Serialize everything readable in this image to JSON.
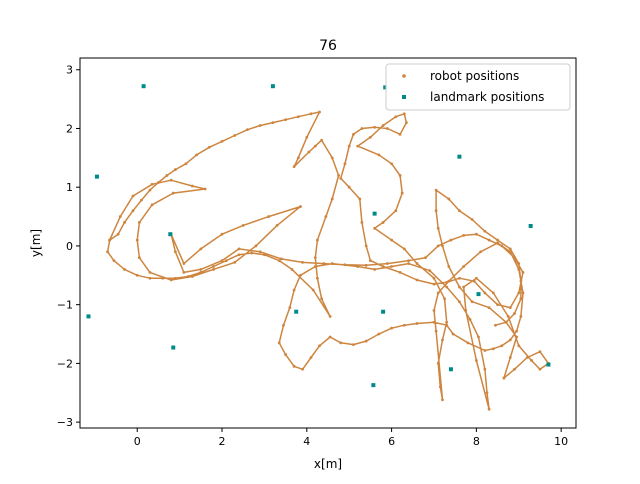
{
  "chart_data": {
    "type": "scatter",
    "title": "76",
    "xlabel": "x[m]",
    "ylabel": "y[m]",
    "xlim": [
      -1.35,
      10.35
    ],
    "ylim": [
      -3.1,
      3.2
    ],
    "xticks": [
      0,
      2,
      4,
      6,
      8,
      10
    ],
    "yticks": [
      -3,
      -2,
      -1,
      0,
      1,
      2,
      3
    ],
    "grid": false,
    "legend_position": "top-right",
    "series": [
      {
        "name": "robot positions",
        "color": "#cd853f",
        "marker": "dot",
        "connected": true,
        "points": [
          [
            -0.65,
            0.1
          ],
          [
            -0.45,
            0.2
          ],
          [
            -0.3,
            0.4
          ],
          [
            -0.1,
            0.6
          ],
          [
            0.1,
            0.78
          ],
          [
            0.3,
            0.95
          ],
          [
            0.5,
            1.08
          ],
          [
            0.7,
            1.2
          ],
          [
            0.9,
            1.3
          ],
          [
            1.15,
            1.4
          ],
          [
            1.4,
            1.55
          ],
          [
            1.7,
            1.68
          ],
          [
            2.0,
            1.78
          ],
          [
            2.3,
            1.88
          ],
          [
            2.6,
            1.98
          ],
          [
            2.9,
            2.05
          ],
          [
            3.2,
            2.1
          ],
          [
            3.5,
            2.15
          ],
          [
            3.8,
            2.2
          ],
          [
            4.1,
            2.25
          ],
          [
            4.3,
            2.28
          ],
          [
            4.0,
            1.85
          ],
          [
            3.8,
            1.5
          ],
          [
            3.7,
            1.35
          ],
          [
            4.05,
            1.6
          ],
          [
            4.2,
            1.7
          ],
          [
            4.35,
            1.8
          ],
          [
            4.6,
            1.5
          ],
          [
            4.75,
            1.2
          ],
          [
            4.6,
            0.8
          ],
          [
            4.45,
            0.5
          ],
          [
            4.25,
            0.1
          ],
          [
            4.2,
            -0.2
          ],
          [
            4.25,
            -0.55
          ],
          [
            4.35,
            -0.9
          ],
          [
            4.55,
            -1.2
          ],
          [
            4.15,
            -0.75
          ],
          [
            3.65,
            -0.4
          ],
          [
            3.35,
            -0.25
          ],
          [
            3.0,
            -0.15
          ],
          [
            2.7,
            -0.12
          ],
          [
            2.4,
            -0.15
          ],
          [
            2.1,
            -0.25
          ],
          [
            1.8,
            -0.35
          ],
          [
            1.5,
            -0.45
          ],
          [
            1.2,
            -0.52
          ],
          [
            0.9,
            -0.55
          ],
          [
            0.6,
            -0.55
          ],
          [
            0.3,
            -0.55
          ],
          [
            0.0,
            -0.5
          ],
          [
            -0.3,
            -0.4
          ],
          [
            -0.55,
            -0.25
          ],
          [
            -0.7,
            -0.1
          ],
          [
            -0.65,
            0.1
          ],
          [
            -0.4,
            0.5
          ],
          [
            -0.1,
            0.85
          ],
          [
            0.35,
            1.05
          ],
          [
            0.8,
            1.12
          ],
          [
            1.3,
            1.02
          ],
          [
            1.6,
            0.97
          ],
          [
            0.85,
            0.9
          ],
          [
            0.35,
            0.7
          ],
          [
            0.05,
            0.4
          ],
          [
            0.0,
            0.1
          ],
          [
            0.05,
            -0.2
          ],
          [
            0.3,
            -0.45
          ],
          [
            0.8,
            -0.58
          ],
          [
            1.3,
            -0.52
          ],
          [
            1.8,
            -0.4
          ],
          [
            2.3,
            -0.28
          ],
          [
            2.8,
            0.0
          ],
          [
            3.3,
            0.35
          ],
          [
            3.85,
            0.67
          ],
          [
            3.1,
            0.5
          ],
          [
            2.5,
            0.35
          ],
          [
            2.0,
            0.2
          ],
          [
            1.5,
            -0.05
          ],
          [
            1.1,
            -0.3
          ],
          [
            0.8,
            0.2
          ],
          [
            0.9,
            -0.1
          ],
          [
            1.1,
            -0.45
          ],
          [
            1.5,
            -0.4
          ],
          [
            2.0,
            -0.25
          ],
          [
            2.4,
            -0.05
          ],
          [
            2.9,
            -0.1
          ],
          [
            3.4,
            -0.22
          ],
          [
            3.9,
            -0.28
          ],
          [
            4.4,
            -0.3
          ],
          [
            4.9,
            -0.32
          ],
          [
            5.4,
            -0.33
          ],
          [
            5.9,
            -0.3
          ],
          [
            6.4,
            -0.25
          ],
          [
            6.8,
            -0.2
          ],
          [
            7.1,
            0.0
          ],
          [
            7.4,
            0.1
          ],
          [
            7.7,
            0.18
          ],
          [
            8.0,
            0.2
          ],
          [
            8.3,
            0.1
          ],
          [
            8.6,
            0.0
          ],
          [
            8.9,
            -0.2
          ],
          [
            9.1,
            -0.45
          ],
          [
            9.0,
            -0.8
          ],
          [
            8.8,
            -1.05
          ],
          [
            8.5,
            -1.0
          ],
          [
            8.2,
            -0.8
          ],
          [
            7.95,
            -0.6
          ],
          [
            7.6,
            -0.55
          ],
          [
            7.3,
            -0.62
          ],
          [
            7.0,
            -0.65
          ],
          [
            6.6,
            -0.58
          ],
          [
            6.2,
            -0.45
          ],
          [
            5.8,
            -0.35
          ],
          [
            5.5,
            -0.25
          ],
          [
            5.4,
            0.0
          ],
          [
            5.3,
            0.4
          ],
          [
            5.25,
            0.8
          ],
          [
            5.0,
            1.0
          ],
          [
            4.8,
            1.15
          ],
          [
            4.9,
            1.4
          ],
          [
            5.0,
            1.7
          ],
          [
            5.1,
            1.9
          ],
          [
            5.3,
            2.0
          ],
          [
            5.6,
            2.02
          ],
          [
            5.9,
            2.0
          ],
          [
            6.2,
            1.9
          ],
          [
            6.35,
            2.1
          ],
          [
            6.3,
            2.25
          ],
          [
            6.1,
            2.2
          ],
          [
            5.8,
            2.05
          ],
          [
            5.5,
            1.85
          ],
          [
            5.2,
            1.7
          ],
          [
            5.7,
            1.55
          ],
          [
            6.0,
            1.4
          ],
          [
            6.2,
            1.2
          ],
          [
            6.25,
            0.9
          ],
          [
            6.1,
            0.6
          ],
          [
            5.8,
            0.4
          ],
          [
            5.6,
            0.3
          ],
          [
            6.0,
            0.1
          ],
          [
            6.3,
            -0.05
          ],
          [
            6.6,
            -0.3
          ],
          [
            7.0,
            -0.55
          ],
          [
            7.25,
            -0.9
          ],
          [
            7.3,
            -1.3
          ],
          [
            7.2,
            -1.6
          ],
          [
            7.1,
            -2.0
          ],
          [
            7.15,
            -2.4
          ],
          [
            7.2,
            -2.62
          ],
          [
            7.05,
            -1.45
          ],
          [
            7.0,
            -1.1
          ],
          [
            7.1,
            -0.8
          ],
          [
            7.35,
            -0.6
          ],
          [
            7.7,
            -0.35
          ],
          [
            8.1,
            -0.1
          ],
          [
            8.5,
            0.05
          ],
          [
            8.8,
            -0.1
          ],
          [
            9.0,
            -0.4
          ],
          [
            9.1,
            -0.8
          ],
          [
            9.05,
            -1.2
          ],
          [
            8.95,
            -1.45
          ],
          [
            8.8,
            -1.6
          ],
          [
            8.6,
            -1.7
          ],
          [
            8.4,
            -1.75
          ],
          [
            8.2,
            -1.78
          ],
          [
            7.8,
            -1.65
          ],
          [
            7.45,
            -1.5
          ],
          [
            7.3,
            -1.35
          ],
          [
            7.0,
            -1.3
          ],
          [
            6.6,
            -1.32
          ],
          [
            6.3,
            -1.35
          ],
          [
            6.0,
            -1.4
          ],
          [
            5.7,
            -1.5
          ],
          [
            5.4,
            -1.62
          ],
          [
            5.1,
            -1.68
          ],
          [
            4.8,
            -1.65
          ],
          [
            4.55,
            -1.55
          ],
          [
            4.3,
            -1.7
          ],
          [
            4.1,
            -1.9
          ],
          [
            3.9,
            -2.1
          ],
          [
            3.7,
            -2.05
          ],
          [
            3.5,
            -1.85
          ],
          [
            3.35,
            -1.65
          ],
          [
            3.45,
            -1.35
          ],
          [
            3.6,
            -1.05
          ],
          [
            3.7,
            -0.75
          ],
          [
            3.85,
            -0.5
          ],
          [
            4.2,
            -0.35
          ],
          [
            4.6,
            -0.3
          ],
          [
            5.2,
            -0.35
          ],
          [
            5.6,
            -0.4
          ],
          [
            6.0,
            -0.35
          ],
          [
            6.4,
            -0.3
          ],
          [
            6.9,
            -0.42
          ],
          [
            7.3,
            -0.7
          ],
          [
            7.6,
            -0.95
          ],
          [
            7.85,
            -1.25
          ],
          [
            8.05,
            -1.55
          ],
          [
            8.2,
            -2.1
          ],
          [
            8.25,
            -2.5
          ],
          [
            8.3,
            -2.78
          ],
          [
            8.0,
            -1.95
          ],
          [
            7.75,
            -1.1
          ],
          [
            7.7,
            -0.7
          ],
          [
            8.0,
            -0.55
          ],
          [
            8.4,
            -0.8
          ],
          [
            8.75,
            -1.2
          ],
          [
            9.0,
            -1.7
          ],
          [
            9.3,
            -1.95
          ],
          [
            9.5,
            -2.1
          ],
          [
            9.7,
            -2.0
          ],
          [
            9.5,
            -1.8
          ],
          [
            9.2,
            -1.9
          ],
          [
            8.9,
            -2.1
          ],
          [
            8.65,
            -2.25
          ],
          [
            8.8,
            -1.9
          ],
          [
            8.95,
            -1.55
          ],
          [
            8.7,
            -1.3
          ],
          [
            8.3,
            -1.05
          ],
          [
            7.9,
            -0.95
          ],
          [
            7.6,
            -0.7
          ],
          [
            7.35,
            -0.35
          ],
          [
            7.2,
            0.0
          ],
          [
            7.1,
            0.3
          ],
          [
            7.05,
            0.6
          ],
          [
            7.05,
            0.95
          ],
          [
            7.35,
            0.8
          ],
          [
            7.6,
            0.6
          ],
          [
            7.9,
            0.45
          ],
          [
            8.2,
            0.25
          ],
          [
            8.5,
            0.1
          ],
          [
            8.8,
            -0.05
          ],
          [
            9.0,
            -0.3
          ],
          [
            9.05,
            -0.6
          ],
          [
            9.05,
            -0.9
          ],
          [
            8.9,
            -1.15
          ],
          [
            8.7,
            -1.3
          ],
          [
            8.45,
            -1.35
          ]
        ]
      },
      {
        "name": "landmark positions",
        "color": "#008b8b",
        "marker": "square",
        "connected": false,
        "points": [
          [
            0.15,
            2.72
          ],
          [
            3.2,
            2.72
          ],
          [
            5.85,
            2.7
          ],
          [
            -0.95,
            1.18
          ],
          [
            7.6,
            1.52
          ],
          [
            5.6,
            0.55
          ],
          [
            9.28,
            0.34
          ],
          [
            0.78,
            0.2
          ],
          [
            -1.15,
            -1.2
          ],
          [
            3.75,
            -1.12
          ],
          [
            5.8,
            -1.12
          ],
          [
            8.05,
            -0.82
          ],
          [
            0.85,
            -1.73
          ],
          [
            7.4,
            -2.1
          ],
          [
            9.7,
            -2.02
          ],
          [
            5.57,
            -2.37
          ]
        ]
      }
    ]
  }
}
